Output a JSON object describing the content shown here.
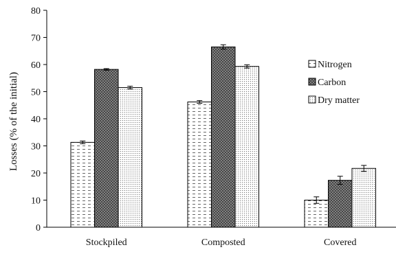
{
  "chart_data": {
    "type": "bar",
    "title": "",
    "xlabel": "",
    "ylabel": "Losses (% of the initial)",
    "ylim": [
      0,
      80
    ],
    "yticks": [
      0,
      10,
      20,
      30,
      40,
      50,
      60,
      70,
      80
    ],
    "grid": false,
    "legend_position": "right",
    "categories": [
      "Stockpiled",
      "Composted",
      "Covered"
    ],
    "series": [
      {
        "name": "Nitrogen",
        "pattern": "dashes",
        "values": [
          31.3,
          46.2,
          10.0
        ],
        "errors": [
          0.5,
          0.5,
          1.2
        ]
      },
      {
        "name": "Carbon",
        "pattern": "crosshatch",
        "values": [
          58.2,
          66.5,
          17.3
        ],
        "errors": [
          0.3,
          0.8,
          1.5
        ]
      },
      {
        "name": "Dry matter",
        "pattern": "dots",
        "values": [
          51.5,
          59.3,
          21.7
        ],
        "errors": [
          0.5,
          0.6,
          1.1
        ]
      }
    ]
  }
}
